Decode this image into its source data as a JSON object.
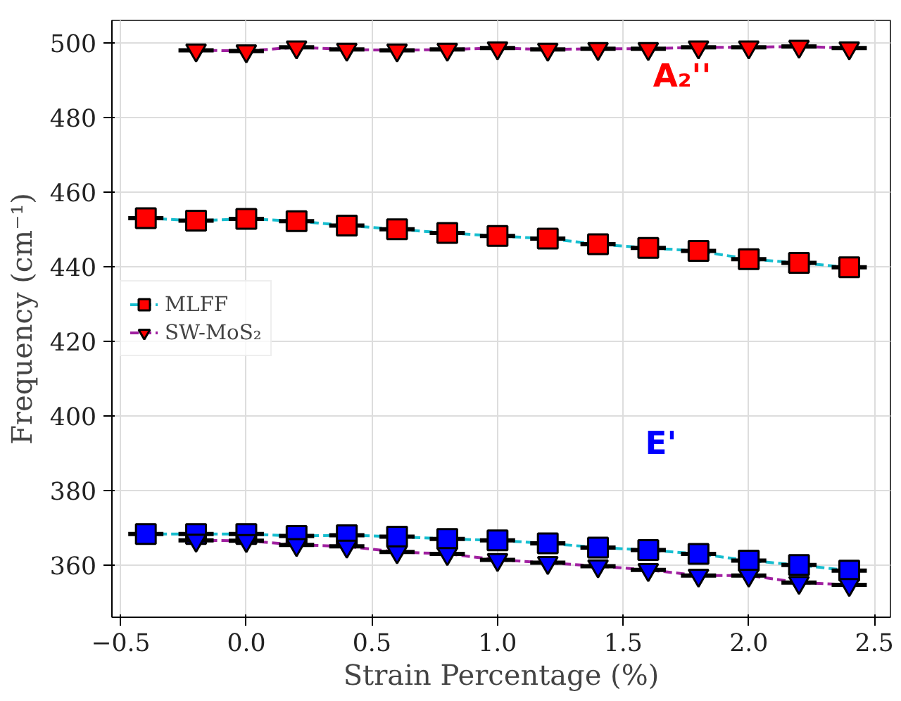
{
  "chart_data": {
    "type": "line",
    "xlabel": "Strain Percentage (%)",
    "ylabel": "Frequency (cm⁻¹)",
    "xlim": [
      -0.535,
      2.564
    ],
    "ylim": [
      346,
      506
    ],
    "xticks": [
      {
        "value": -0.5,
        "label": "−0.5"
      },
      {
        "value": 0,
        "label": "0.0"
      },
      {
        "value": 0.5,
        "label": "0.5"
      },
      {
        "value": 1,
        "label": "1.0"
      },
      {
        "value": 1.5,
        "label": "1.5"
      },
      {
        "value": 2,
        "label": "2.0"
      },
      {
        "value": 2.5,
        "label": "2.5"
      }
    ],
    "yticks": [
      360,
      380,
      400,
      420,
      440,
      460,
      480,
      500
    ],
    "grid": true,
    "legend": "left",
    "line_style": "dashed",
    "series": [
      {
        "name": "MLFF",
        "color": "#17becf",
        "marker": "square",
        "x": [
          -0.4,
          -0.2,
          0,
          0.2,
          0.4,
          0.6,
          0.8,
          1.0,
          1.2,
          1.4,
          1.6,
          1.8,
          2.0,
          2.2,
          2.4
        ],
        "values": [
          453,
          452.3,
          452.8,
          452.2,
          451,
          450,
          449,
          448.2,
          447.5,
          446,
          445,
          444.2,
          442,
          441,
          439.8
        ],
        "colors": [
          "#ff0000",
          "#ff0000",
          "#ff0000",
          "#ff0000",
          "#ff0000",
          "#ff0000",
          "#ff0000",
          "#ff0000",
          "#ff0000",
          "#ff0000",
          "#ff0000",
          "#ff0000",
          "#ff0000",
          "#ff0000",
          "#ff0000"
        ],
        "xerrors": [
          0.07,
          0.07,
          0.07,
          0.07,
          0.07,
          0.07,
          0.07,
          0.07,
          0.07,
          0.07,
          0.07,
          0.07,
          0.07,
          0.07,
          0.07
        ]
      },
      {
        "color": "#17becf",
        "marker": "square",
        "x": [
          -0.4,
          -0.2,
          0,
          0.2,
          0.4,
          0.6,
          0.8,
          1.0,
          1.2,
          1.4,
          1.6,
          1.8,
          2.0,
          2.2,
          2.4
        ],
        "values": [
          368.3,
          368.3,
          368.3,
          367.8,
          368,
          367.6,
          367,
          366.6,
          365.8,
          364.7,
          364,
          363,
          361.2,
          360,
          358.5
        ],
        "colors": [
          "#0000ff",
          "#0000ff",
          "#0000ff",
          "#0000ff",
          "#0000ff",
          "#0000ff",
          "#0000ff",
          "#0000ff",
          "#0000ff",
          "#0000ff",
          "#0000ff",
          "#0000ff",
          "#0000ff",
          "#0000ff",
          "#0000ff"
        ],
        "xerrors": [
          0.07,
          0.07,
          0.07,
          0.07,
          0.07,
          0.07,
          0.07,
          0.07,
          0.07,
          0.07,
          0.07,
          0.07,
          0.07,
          0.07,
          0.07
        ]
      },
      {
        "name": "SW-MoS₂",
        "color": "#a020a0",
        "marker": "triangle",
        "x": [
          -0.2,
          0,
          0.2,
          0.4,
          0.6,
          0.8,
          1.0,
          1.2,
          1.4,
          1.6,
          1.8,
          2.0,
          2.2,
          2.4
        ],
        "values": [
          498,
          497.8,
          498.8,
          498.2,
          498,
          498.2,
          498.6,
          498.2,
          498.4,
          498.4,
          498.8,
          498.8,
          499,
          498.6
        ],
        "colors": [
          "#ff0000",
          "#ff0000",
          "#ff0000",
          "#ff0000",
          "#ff0000",
          "#ff0000",
          "#ff0000",
          "#ff0000",
          "#ff0000",
          "#ff0000",
          "#ff0000",
          "#ff0000",
          "#ff0000",
          "#ff0000"
        ],
        "xerrors": [
          0.07,
          0.07,
          0.07,
          0.07,
          0.07,
          0.07,
          0.07,
          0.07,
          0.07,
          0.07,
          0.07,
          0.07,
          0.07,
          0.07
        ]
      },
      {
        "color": "#a020a0",
        "marker": "triangle",
        "x": [
          -0.2,
          0,
          0.2,
          0.4,
          0.6,
          0.8,
          1.0,
          1.2,
          1.4,
          1.6,
          1.8,
          2.0,
          2.2,
          2.4
        ],
        "values": [
          366.6,
          366.5,
          365.4,
          365,
          363.5,
          363,
          361.4,
          360.6,
          359.7,
          358.7,
          357.2,
          357.2,
          355.3,
          354.7
        ],
        "colors": [
          "#0000ff",
          "#0000ff",
          "#0000ff",
          "#0000ff",
          "#0000ff",
          "#0000ff",
          "#0000ff",
          "#0000ff",
          "#0000ff",
          "#0000ff",
          "#0000ff",
          "#0000ff",
          "#0000ff",
          "#0000ff"
        ],
        "xerrors": [
          0.07,
          0.07,
          0.07,
          0.07,
          0.07,
          0.07,
          0.07,
          0.07,
          0.07,
          0.07,
          0.07,
          0.07,
          0.07,
          0.07
        ]
      }
    ],
    "annotations": [
      "A₂''",
      "E'"
    ]
  }
}
